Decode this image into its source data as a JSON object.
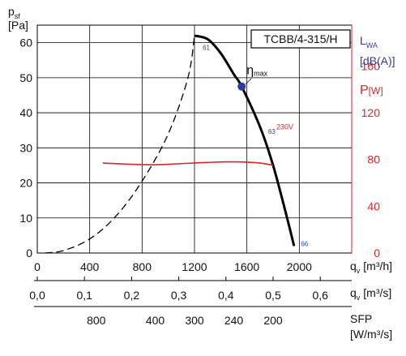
{
  "chart_data": {
    "type": "line",
    "title": "TCBB/4-315/H",
    "xlabel": {
      "main": "q",
      "sub": "v",
      "unit": "[m³/h]"
    },
    "ylabel": {
      "main": "p",
      "sub": "sf",
      "unit": "[Pa]"
    },
    "x_ticks": [
      "0",
      "400",
      "800",
      "1200",
      "1600",
      "2000"
    ],
    "xlim": [
      0,
      2400
    ],
    "y_ticks": [
      "0",
      "10",
      "20",
      "30",
      "40",
      "50",
      "60"
    ],
    "ylim": [
      0,
      65
    ],
    "right_axis": {
      "lwa_label": "L",
      "lwa_sub": "WA",
      "lwa_unit": "[dB(A)]",
      "power_label": "P",
      "power_unit": "[W]",
      "ticks": [
        "0",
        "40",
        "80",
        "120",
        "160"
      ],
      "ylim": [
        0,
        195
      ]
    },
    "axis2": {
      "label": "q",
      "label_sub": "v",
      "unit": "[m³/s]",
      "ticks": [
        {
          "label": "0,0",
          "x": 0
        },
        {
          "label": "0,1",
          "x": 360
        },
        {
          "label": "0,2",
          "x": 720
        },
        {
          "label": "0,3",
          "x": 1080
        },
        {
          "label": "0,4",
          "x": 1440
        },
        {
          "label": "0,5",
          "x": 1800
        },
        {
          "label": "0,6",
          "x": 2160
        }
      ]
    },
    "axis3": {
      "label": "SFP",
      "unit": "[W/m³/s]",
      "ticks": [
        {
          "label": "800",
          "x": 450
        },
        {
          "label": "400",
          "x": 900
        },
        {
          "label": "300",
          "x": 1200
        },
        {
          "label": "240",
          "x": 1500
        },
        {
          "label": "200",
          "x": 1800
        }
      ]
    },
    "series": [
      {
        "style": "dashed",
        "x": [
          60,
          200,
          400,
          600,
          800,
          1000,
          1150,
          1200
        ],
        "y": [
          0,
          0.7,
          4,
          10.5,
          20.5,
          34,
          50,
          62
        ]
      },
      {
        "style": "solid",
        "x": [
          1200,
          1300,
          1400,
          1500,
          1560,
          1700,
          1800,
          1900,
          1960
        ],
        "y": [
          62,
          61,
          57,
          51,
          47.5,
          36,
          25,
          11,
          2
        ]
      },
      {
        "name": "230V",
        "style": "power",
        "x": [
          500,
          700,
          900,
          1100,
          1300,
          1500,
          1700,
          1800
        ],
        "y": [
          77,
          76,
          75.5,
          76.5,
          77.5,
          78,
          77,
          75
        ]
      }
    ],
    "markers": [
      {
        "label": "η",
        "sub": "max",
        "x": 1560,
        "y": 47.5
      }
    ],
    "annotations": [
      {
        "text": "61",
        "x": 1290,
        "y": 58
      },
      {
        "text": "63",
        "x": 1790,
        "y": 34
      },
      {
        "text": "66",
        "x": 2040,
        "y": 2
      },
      {
        "text": "230V",
        "x": 1890,
        "y": 26
      }
    ],
    "grid": true,
    "legend": "none",
    "colors": {
      "curve": "#000000",
      "power": "#e0212a",
      "lwa": "#2c3d9a",
      "marker": "#2b3aa0"
    }
  }
}
